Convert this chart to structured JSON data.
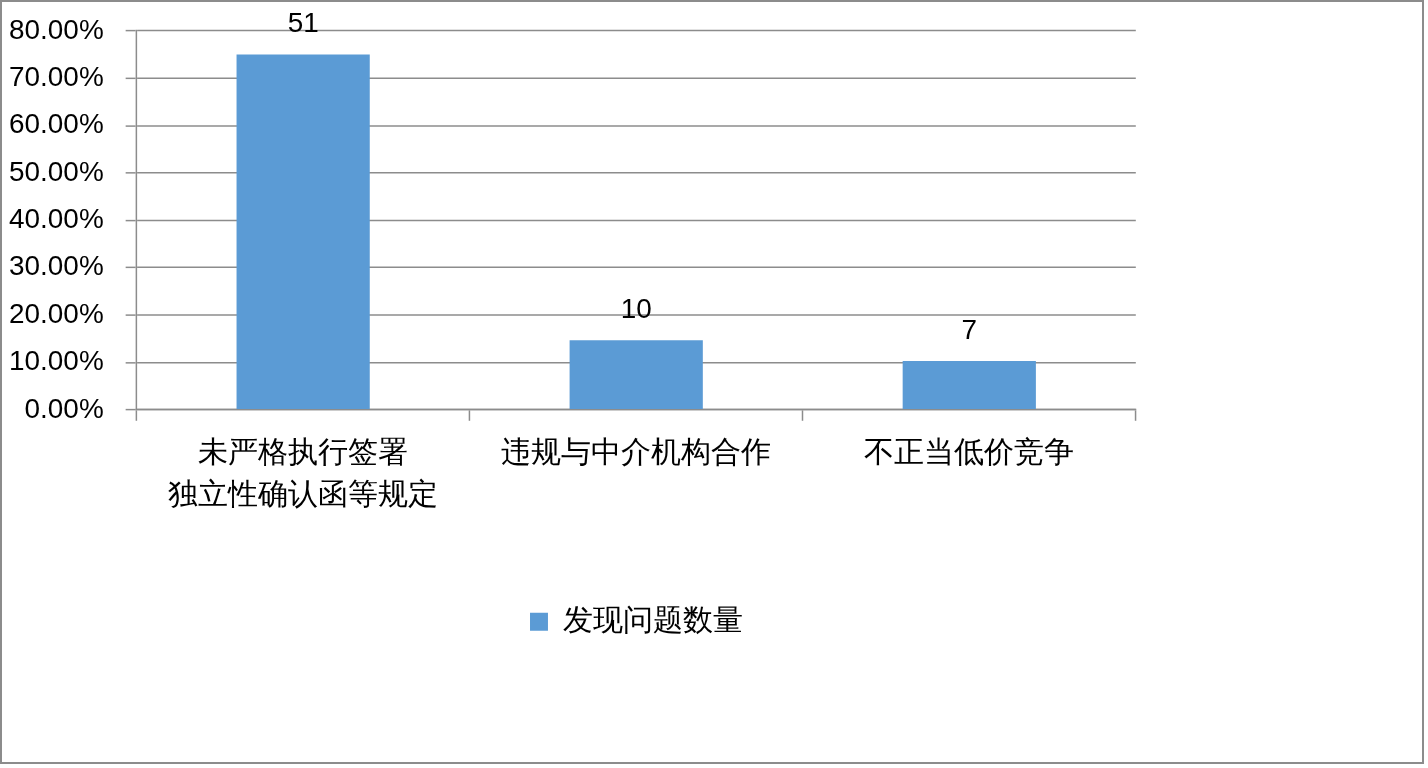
{
  "chart_data": {
    "type": "bar",
    "categories": [
      "未严格执行签署独立性确认函等规定",
      "违规与中介机构合作",
      "不正当低价竞争"
    ],
    "series": [
      {
        "name": "发现问题数量",
        "color": "#5b9bd5",
        "values": [
          75,
          14.7,
          10.3
        ]
      }
    ],
    "ylim": [
      0,
      80
    ],
    "yticks": [
      {
        "value": 0,
        "label": "0.00%"
      },
      {
        "value": 10,
        "label": "10.00%"
      },
      {
        "value": 20,
        "label": "20.00%"
      },
      {
        "value": 30,
        "label": "30.00%"
      },
      {
        "value": 40,
        "label": "40.00%"
      },
      {
        "value": 50,
        "label": "50.00%"
      },
      {
        "value": 60,
        "label": "60.00%"
      },
      {
        "value": 70,
        "label": "70.00%"
      },
      {
        "value": 80,
        "label": "80.00%"
      }
    ],
    "annotations": [
      {
        "text": "51",
        "x": "未严格执行签署独立性确认函等规定",
        "y": 75
      },
      {
        "text": "10",
        "x": "违规与中介机构合作",
        "y": 14.7
      },
      {
        "text": "7",
        "x": "不正当低价竞争",
        "y": 10.3
      }
    ],
    "grid": "y",
    "legend": "bottom"
  }
}
